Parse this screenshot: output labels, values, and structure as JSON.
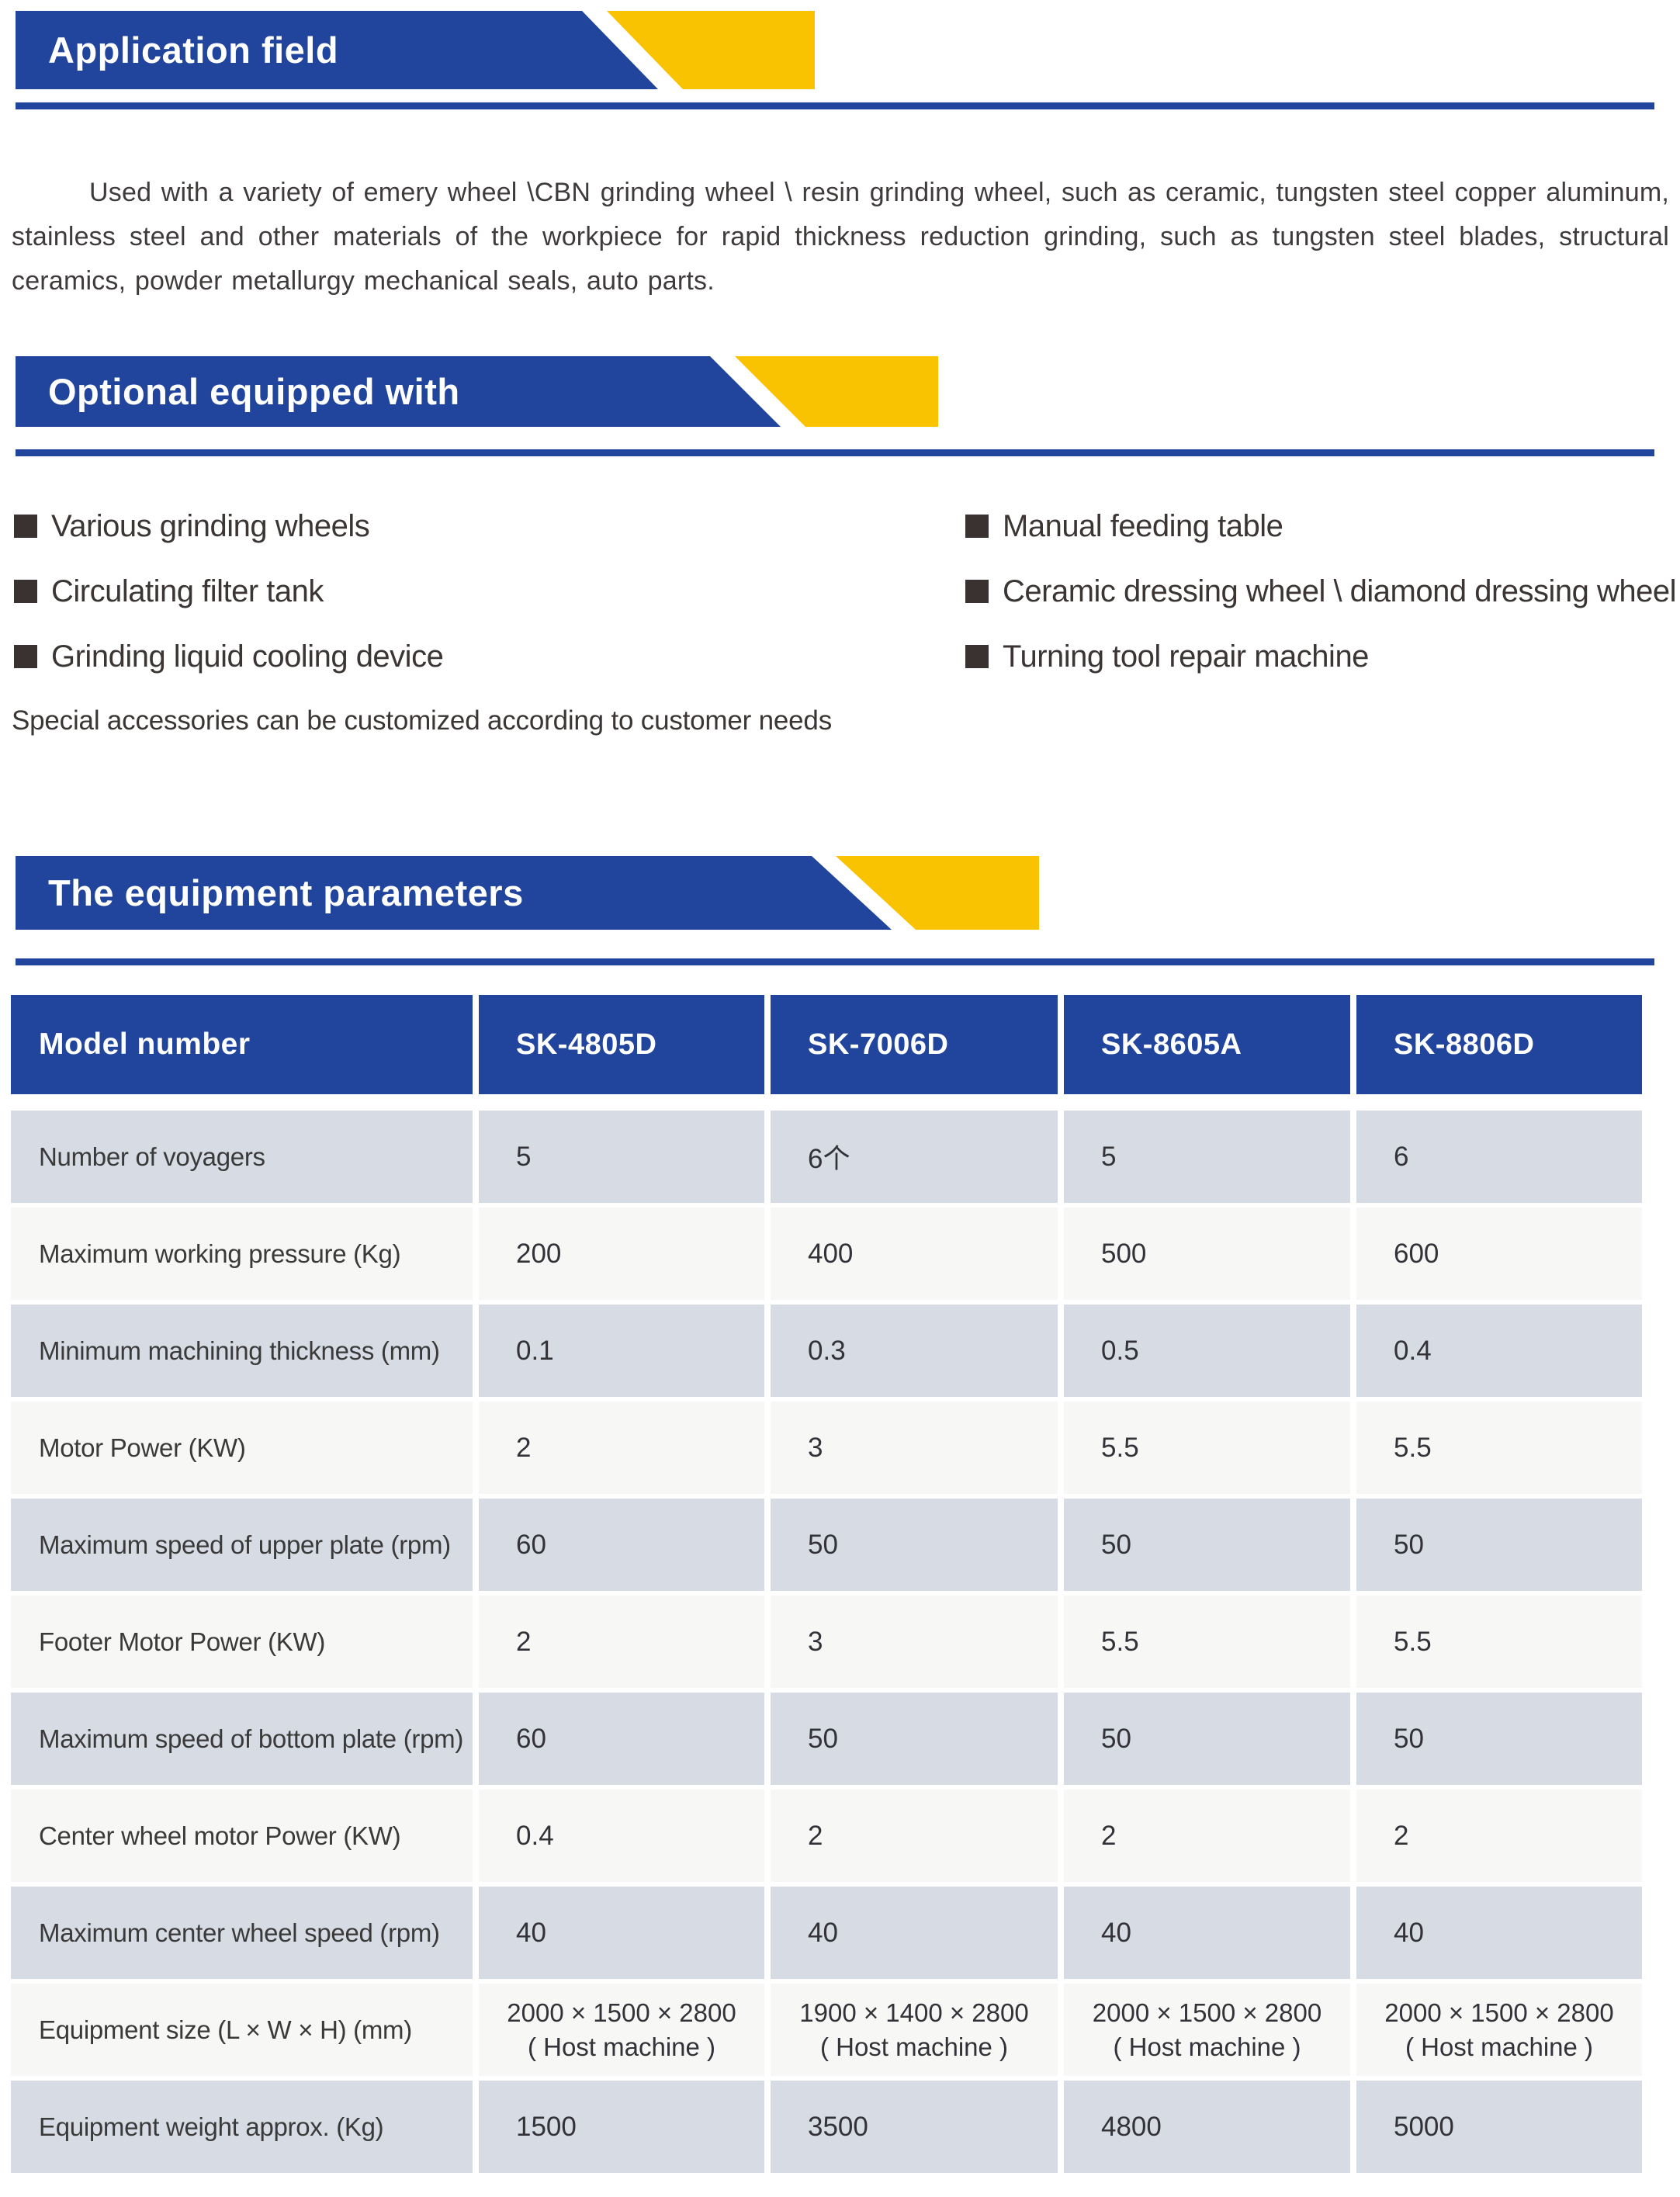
{
  "colors": {
    "blue": "#21459c",
    "yellow": "#f9c301",
    "row_dark": "#d6dbe4",
    "row_light": "#f7f7f5",
    "bullet": "#3a3231"
  },
  "sections": {
    "application": {
      "title": "Application field",
      "body": "Used with a variety of emery wheel \\CBN grinding wheel \\ resin grinding wheel, such as ceramic, tungsten steel copper aluminum, stainless steel and other materials of the workpiece for rapid thickness reduction grinding, such as tungsten steel blades, structural ceramics, powder metallurgy mechanical seals, auto parts."
    },
    "optional": {
      "title": "Optional equipped with",
      "left_items": [
        "Various grinding wheels",
        "Circulating filter tank",
        "Grinding liquid cooling device"
      ],
      "right_items": [
        "Manual feeding table",
        "Ceramic dressing wheel \\ diamond dressing wheel",
        "Turning tool repair machine"
      ],
      "note": "Special accessories can be customized according to customer needs"
    },
    "parameters": {
      "title": "The equipment parameters",
      "table": {
        "header": [
          "Model number",
          "SK-4805D",
          "SK-7006D",
          "SK-8605A",
          "SK-8806D"
        ],
        "rows": [
          {
            "label": "Number of voyagers",
            "values": [
              "5",
              "6个",
              "5",
              "6"
            ]
          },
          {
            "label": "Maximum working pressure (Kg)",
            "values": [
              "200",
              "400",
              "500",
              "600"
            ]
          },
          {
            "label": "Minimum machining thickness (mm)",
            "values": [
              "0.1",
              "0.3",
              "0.5",
              "0.4"
            ]
          },
          {
            "label": "Motor Power (KW)",
            "values": [
              "2",
              "3",
              "5.5",
              "5.5"
            ]
          },
          {
            "label": "Maximum speed of upper plate (rpm)",
            "values": [
              "60",
              "50",
              "50",
              "50"
            ]
          },
          {
            "label": "Footer Motor Power (KW)",
            "values": [
              "2",
              "3",
              "5.5",
              "5.5"
            ]
          },
          {
            "label": "Maximum speed of bottom plate (rpm)",
            "values": [
              "60",
              "50",
              "50",
              "50"
            ]
          },
          {
            "label": "Center wheel motor Power (KW)",
            "values": [
              "0.4",
              "2",
              "2",
              "2"
            ]
          },
          {
            "label": "Maximum center wheel speed (rpm)",
            "values": [
              "40",
              "40",
              "40",
              "40"
            ]
          },
          {
            "label": "Equipment size (L × W × H) (mm)",
            "center": true,
            "values": [
              "2000 × 1500 × 2800\n( Host machine )",
              "1900 × 1400 × 2800\n( Host machine )",
              "2000 × 1500 × 2800\n( Host machine )",
              "2000 × 1500 × 2800\n( Host machine )"
            ]
          },
          {
            "label": "Equipment weight approx. (Kg)",
            "values": [
              "1500",
              "3500",
              "4800",
              "5000"
            ]
          }
        ]
      }
    }
  }
}
